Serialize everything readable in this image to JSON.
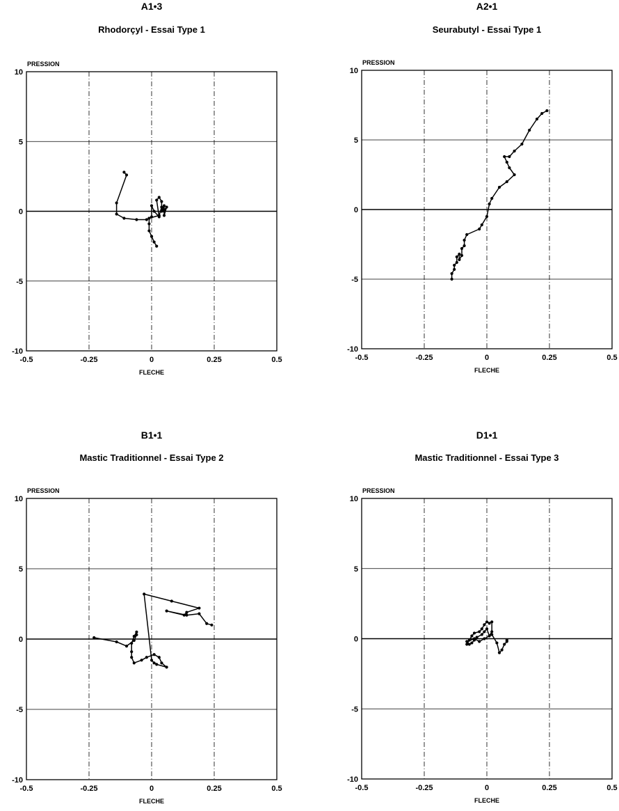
{
  "chart_data": [
    {
      "type": "line",
      "code": "A1•3",
      "title": "Rhodorçyl - Essai Type 1",
      "xlabel": "FLECHE",
      "ylabel": "PRESSION",
      "xlim": [
        -0.5,
        0.5
      ],
      "ylim": [
        -10,
        10
      ],
      "xticks": [
        "-0.5",
        "-0.25",
        "0",
        "0.25",
        "0.5"
      ],
      "yticks": [
        "10",
        "5",
        "0",
        "-5",
        "-10"
      ],
      "grid": true,
      "series": [
        {
          "points": [
            [
              -0.11,
              2.8
            ],
            [
              -0.1,
              2.6
            ],
            [
              -0.14,
              0.6
            ],
            [
              -0.14,
              -0.2
            ],
            [
              -0.11,
              -0.5
            ],
            [
              -0.06,
              -0.6
            ],
            [
              -0.02,
              -0.6
            ],
            [
              0.0,
              -0.4
            ],
            [
              0.0,
              0.4
            ],
            [
              0.01,
              0.0
            ],
            [
              0.03,
              -0.4
            ],
            [
              0.02,
              0.8
            ],
            [
              0.03,
              1.0
            ],
            [
              0.04,
              0.7
            ],
            [
              0.04,
              0.0
            ],
            [
              0.05,
              0.4
            ],
            [
              0.05,
              0.0
            ],
            [
              0.05,
              -0.3
            ],
            [
              0.06,
              0.3
            ],
            [
              0.05,
              0.1
            ],
            [
              0.04,
              0.3
            ],
            [
              0.03,
              -0.3
            ],
            [
              -0.01,
              -0.5
            ],
            [
              -0.01,
              -0.9
            ],
            [
              -0.01,
              -1.4
            ],
            [
              0.0,
              -1.8
            ],
            [
              0.01,
              -2.2
            ],
            [
              0.02,
              -2.5
            ]
          ]
        }
      ]
    },
    {
      "type": "line",
      "code": "A2•1",
      "title": "Seurabutyl - Essai Type 1",
      "xlabel": "FLECHE",
      "ylabel": "PRESSION",
      "xlim": [
        -0.5,
        0.5
      ],
      "ylim": [
        -10,
        10
      ],
      "xticks": [
        "-0.5",
        "-0.25",
        "0",
        "0.25",
        "0.5"
      ],
      "yticks": [
        "10",
        "5",
        "0",
        "-5",
        "-10"
      ],
      "grid": true,
      "series": [
        {
          "points": [
            [
              -0.14,
              -5.0
            ],
            [
              -0.14,
              -4.6
            ],
            [
              -0.13,
              -4.3
            ],
            [
              -0.13,
              -4.0
            ],
            [
              -0.12,
              -3.8
            ],
            [
              -0.12,
              -3.4
            ],
            [
              -0.11,
              -3.2
            ],
            [
              -0.11,
              -3.6
            ],
            [
              -0.1,
              -3.3
            ],
            [
              -0.1,
              -2.8
            ],
            [
              -0.09,
              -2.6
            ],
            [
              -0.09,
              -2.2
            ],
            [
              -0.08,
              -1.8
            ],
            [
              -0.03,
              -1.4
            ],
            [
              -0.02,
              -1.1
            ],
            [
              0.0,
              -0.5
            ],
            [
              0.01,
              0.4
            ],
            [
              0.02,
              0.8
            ],
            [
              0.05,
              1.6
            ],
            [
              0.08,
              2.0
            ],
            [
              0.11,
              2.5
            ],
            [
              0.09,
              3.0
            ],
            [
              0.08,
              3.4
            ],
            [
              0.07,
              3.8
            ],
            [
              0.09,
              3.8
            ],
            [
              0.11,
              4.2
            ],
            [
              0.14,
              4.7
            ],
            [
              0.17,
              5.7
            ],
            [
              0.2,
              6.5
            ],
            [
              0.22,
              6.9
            ],
            [
              0.24,
              7.1
            ]
          ]
        }
      ]
    },
    {
      "type": "line",
      "code": "B1•1",
      "title": "Mastic Traditionnel - Essai Type 2",
      "xlabel": "FLECHE",
      "ylabel": "PRESSION",
      "xlim": [
        -0.5,
        0.5
      ],
      "ylim": [
        -10,
        10
      ],
      "xticks": [
        "-0.5",
        "-0.25",
        "0",
        "0.25",
        "0.5"
      ],
      "yticks": [
        "10",
        "5",
        "0",
        "-5",
        "-10"
      ],
      "grid": true,
      "series": [
        {
          "points": [
            [
              -0.23,
              0.1
            ],
            [
              -0.14,
              -0.2
            ],
            [
              -0.1,
              -0.5
            ],
            [
              -0.07,
              -0.1
            ],
            [
              -0.06,
              0.3
            ],
            [
              -0.06,
              0.5
            ],
            [
              -0.07,
              0.2
            ],
            [
              -0.08,
              -0.3
            ],
            [
              -0.08,
              -0.9
            ],
            [
              -0.08,
              -1.3
            ],
            [
              -0.07,
              -1.7
            ],
            [
              -0.04,
              -1.5
            ],
            [
              -0.02,
              -1.3
            ],
            [
              0.01,
              -1.1
            ],
            [
              0.03,
              -1.3
            ],
            [
              0.04,
              -1.7
            ],
            [
              0.06,
              -2.0
            ],
            [
              0.02,
              -1.8
            ],
            [
              0.01,
              -1.7
            ],
            [
              0.0,
              -1.5
            ],
            [
              -0.03,
              3.2
            ],
            [
              0.08,
              2.7
            ],
            [
              0.19,
              2.2
            ],
            [
              0.14,
              1.9
            ],
            [
              0.13,
              1.7
            ],
            [
              0.06,
              2.0
            ],
            [
              0.14,
              1.7
            ],
            [
              0.19,
              1.8
            ],
            [
              0.22,
              1.1
            ],
            [
              0.24,
              1.0
            ]
          ]
        }
      ]
    },
    {
      "type": "line",
      "code": "D1•1",
      "title": "Mastic Traditionnel - Essai Type 3",
      "xlabel": "FLECHE",
      "ylabel": "PRESSION",
      "xlim": [
        -0.5,
        0.5
      ],
      "ylim": [
        -10,
        10
      ],
      "xticks": [
        "-0.5",
        "-0.25",
        "0",
        "0.25",
        "0.5"
      ],
      "yticks": [
        "10",
        "5",
        "0",
        "-5",
        "-10"
      ],
      "grid": true,
      "series": [
        {
          "points": [
            [
              -0.08,
              -0.4
            ],
            [
              -0.07,
              -0.1
            ],
            [
              -0.06,
              0.2
            ],
            [
              -0.05,
              0.4
            ],
            [
              -0.03,
              0.5
            ],
            [
              -0.02,
              0.7
            ],
            [
              -0.01,
              1.0
            ],
            [
              0.0,
              1.2
            ],
            [
              0.01,
              1.1
            ],
            [
              0.02,
              1.2
            ],
            [
              0.02,
              0.5
            ],
            [
              0.01,
              0.2
            ],
            [
              0.0,
              0.7
            ],
            [
              -0.01,
              0.5
            ],
            [
              -0.02,
              0.3
            ],
            [
              -0.04,
              0.1
            ],
            [
              -0.05,
              -0.1
            ],
            [
              -0.06,
              -0.3
            ],
            [
              -0.07,
              -0.4
            ],
            [
              -0.08,
              -0.2
            ],
            [
              -0.05,
              0.0
            ],
            [
              -0.03,
              -0.2
            ],
            [
              -0.01,
              0.0
            ],
            [
              0.02,
              0.3
            ],
            [
              0.04,
              -0.3
            ],
            [
              0.05,
              -1.0
            ],
            [
              0.06,
              -0.8
            ],
            [
              0.07,
              -0.4
            ],
            [
              0.08,
              -0.2
            ],
            [
              0.08,
              -0.1
            ]
          ]
        }
      ]
    }
  ]
}
